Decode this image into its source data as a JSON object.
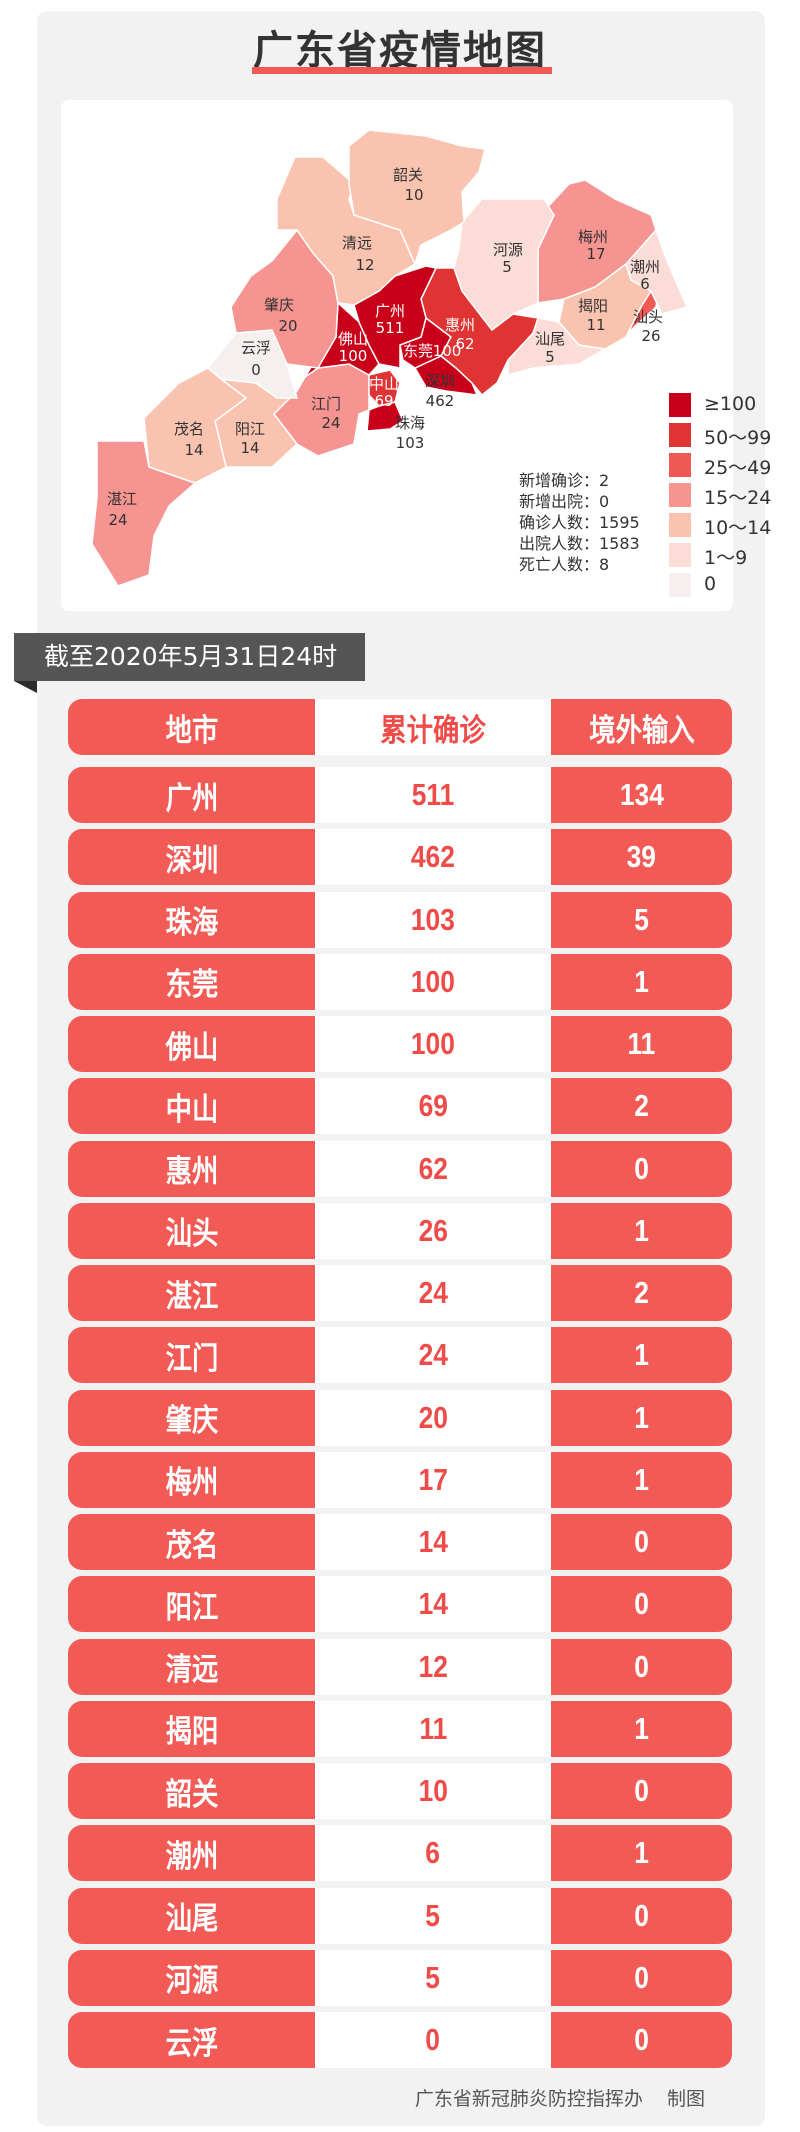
{
  "title": "广东省疫情地图",
  "map": {
    "regions": [
      {
        "name": "韶关",
        "value": "10"
      },
      {
        "name": "清远",
        "value": "12"
      },
      {
        "name": "河源",
        "value": "5"
      },
      {
        "name": "梅州",
        "value": "17"
      },
      {
        "name": "潮州",
        "value": "6"
      },
      {
        "name": "肇庆",
        "value": "20"
      },
      {
        "name": "广州",
        "value": "511"
      },
      {
        "name": "惠州",
        "value": "62"
      },
      {
        "name": "揭阳",
        "value": "11"
      },
      {
        "name": "汕头",
        "value": "26"
      },
      {
        "name": "佛山",
        "value": "100"
      },
      {
        "name": "东莞",
        "value": "100"
      },
      {
        "name": "汕尾",
        "value": "5"
      },
      {
        "name": "云浮",
        "value": "0"
      },
      {
        "name": "深圳",
        "value": "462"
      },
      {
        "name": "中山",
        "value": "69"
      },
      {
        "name": "江门",
        "value": "24"
      },
      {
        "name": "珠海",
        "value": "103"
      },
      {
        "name": "茂名",
        "value": "14"
      },
      {
        "name": "阳江",
        "value": "14"
      },
      {
        "name": "湛江",
        "value": "24"
      }
    ],
    "stats": [
      "新增确诊：2",
      "新增出院：0",
      "确诊人数：1595",
      "出院人数：1583",
      "死亡人数：8"
    ],
    "legend": [
      {
        "label": "≥100",
        "color": "#c8001a"
      },
      {
        "label": "50～99",
        "color": "#e03333"
      },
      {
        "label": "25～49",
        "color": "#f05a55"
      },
      {
        "label": "15～24",
        "color": "#f59490"
      },
      {
        "label": "10～14",
        "color": "#f9c3b0"
      },
      {
        "label": "1～9",
        "color": "#fcdcd6"
      },
      {
        "label": "0",
        "color": "#f5f0ef"
      }
    ]
  },
  "date_banner": "截至2020年5月31日24时",
  "table": {
    "headers": [
      "地市",
      "累计确诊",
      "境外输入"
    ],
    "rows": [
      [
        "广州",
        "511",
        "134"
      ],
      [
        "深圳",
        "462",
        "39"
      ],
      [
        "珠海",
        "103",
        "5"
      ],
      [
        "东莞",
        "100",
        "1"
      ],
      [
        "佛山",
        "100",
        "11"
      ],
      [
        "中山",
        "69",
        "2"
      ],
      [
        "惠州",
        "62",
        "0"
      ],
      [
        "汕头",
        "26",
        "1"
      ],
      [
        "湛江",
        "24",
        "2"
      ],
      [
        "江门",
        "24",
        "1"
      ],
      [
        "肇庆",
        "20",
        "1"
      ],
      [
        "梅州",
        "17",
        "1"
      ],
      [
        "茂名",
        "14",
        "0"
      ],
      [
        "阳江",
        "14",
        "0"
      ],
      [
        "清远",
        "12",
        "0"
      ],
      [
        "揭阳",
        "11",
        "1"
      ],
      [
        "韶关",
        "10",
        "0"
      ],
      [
        "潮州",
        "6",
        "1"
      ],
      [
        "汕尾",
        "5",
        "0"
      ],
      [
        "河源",
        "5",
        "0"
      ],
      [
        "云浮",
        "0",
        "0"
      ]
    ]
  },
  "footer": "广东省新冠肺炎防控指挥办    制图"
}
